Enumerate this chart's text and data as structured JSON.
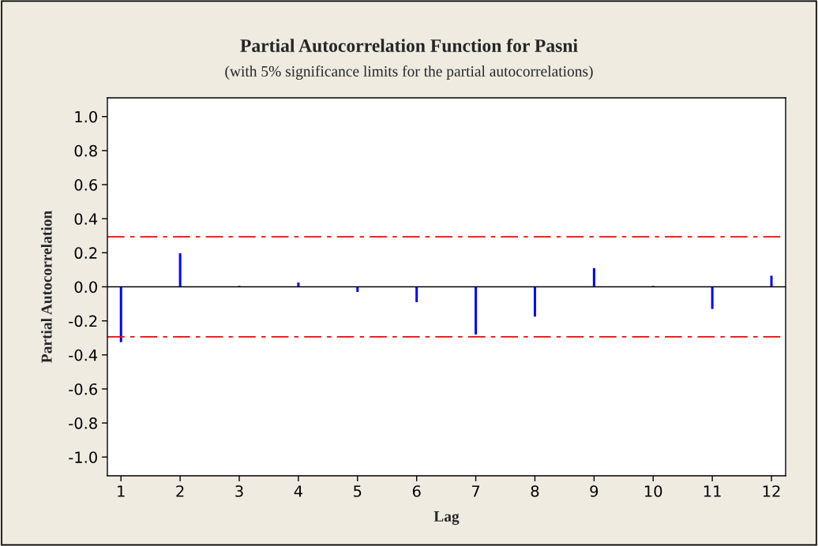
{
  "chart_data": {
    "type": "bar",
    "title": "Partial Autocorrelation Function for Pasni",
    "subtitle": "(with 5% significance limits for the partial autocorrelations)",
    "xlabel": "Lag",
    "ylabel": "Partial Autocorrelation",
    "x": [
      1,
      2,
      3,
      4,
      5,
      6,
      7,
      8,
      9,
      10,
      11,
      12
    ],
    "values": [
      -0.325,
      0.197,
      0.005,
      0.025,
      -0.03,
      -0.09,
      -0.28,
      -0.175,
      0.11,
      0.005,
      -0.13,
      0.065
    ],
    "color": "#0000ff",
    "xlim": [
      0.77,
      12.24
    ],
    "xticks": [
      1,
      2,
      3,
      4,
      5,
      6,
      7,
      8,
      9,
      10,
      11,
      12
    ],
    "ylim": [
      -1.11,
      1.11
    ],
    "yticks": [
      {
        "value": -1.0,
        "label": "-1.0"
      },
      {
        "value": -0.8,
        "label": "-0.8"
      },
      {
        "value": -0.6,
        "label": "-0.6"
      },
      {
        "value": -0.4,
        "label": "-0.4"
      },
      {
        "value": -0.2,
        "label": "-0.2"
      },
      {
        "value": 0.0,
        "label": "0.0"
      },
      {
        "value": 0.2,
        "label": "0.2"
      },
      {
        "value": 0.4,
        "label": "0.4"
      },
      {
        "value": 0.6,
        "label": "0.6"
      },
      {
        "value": 0.8,
        "label": "0.8"
      },
      {
        "value": 1.0,
        "label": "1.0"
      }
    ],
    "ref_lines": [
      {
        "axis": "y",
        "value": 0.294,
        "color": "#ff0000",
        "line_style": "dashdot"
      },
      {
        "axis": "y",
        "value": -0.294,
        "color": "#ff0000",
        "line_style": "dashdot"
      },
      {
        "axis": "y",
        "value": 0.0,
        "color": "#000000",
        "line_style": "solid"
      }
    ],
    "grid": false,
    "legend": false
  }
}
